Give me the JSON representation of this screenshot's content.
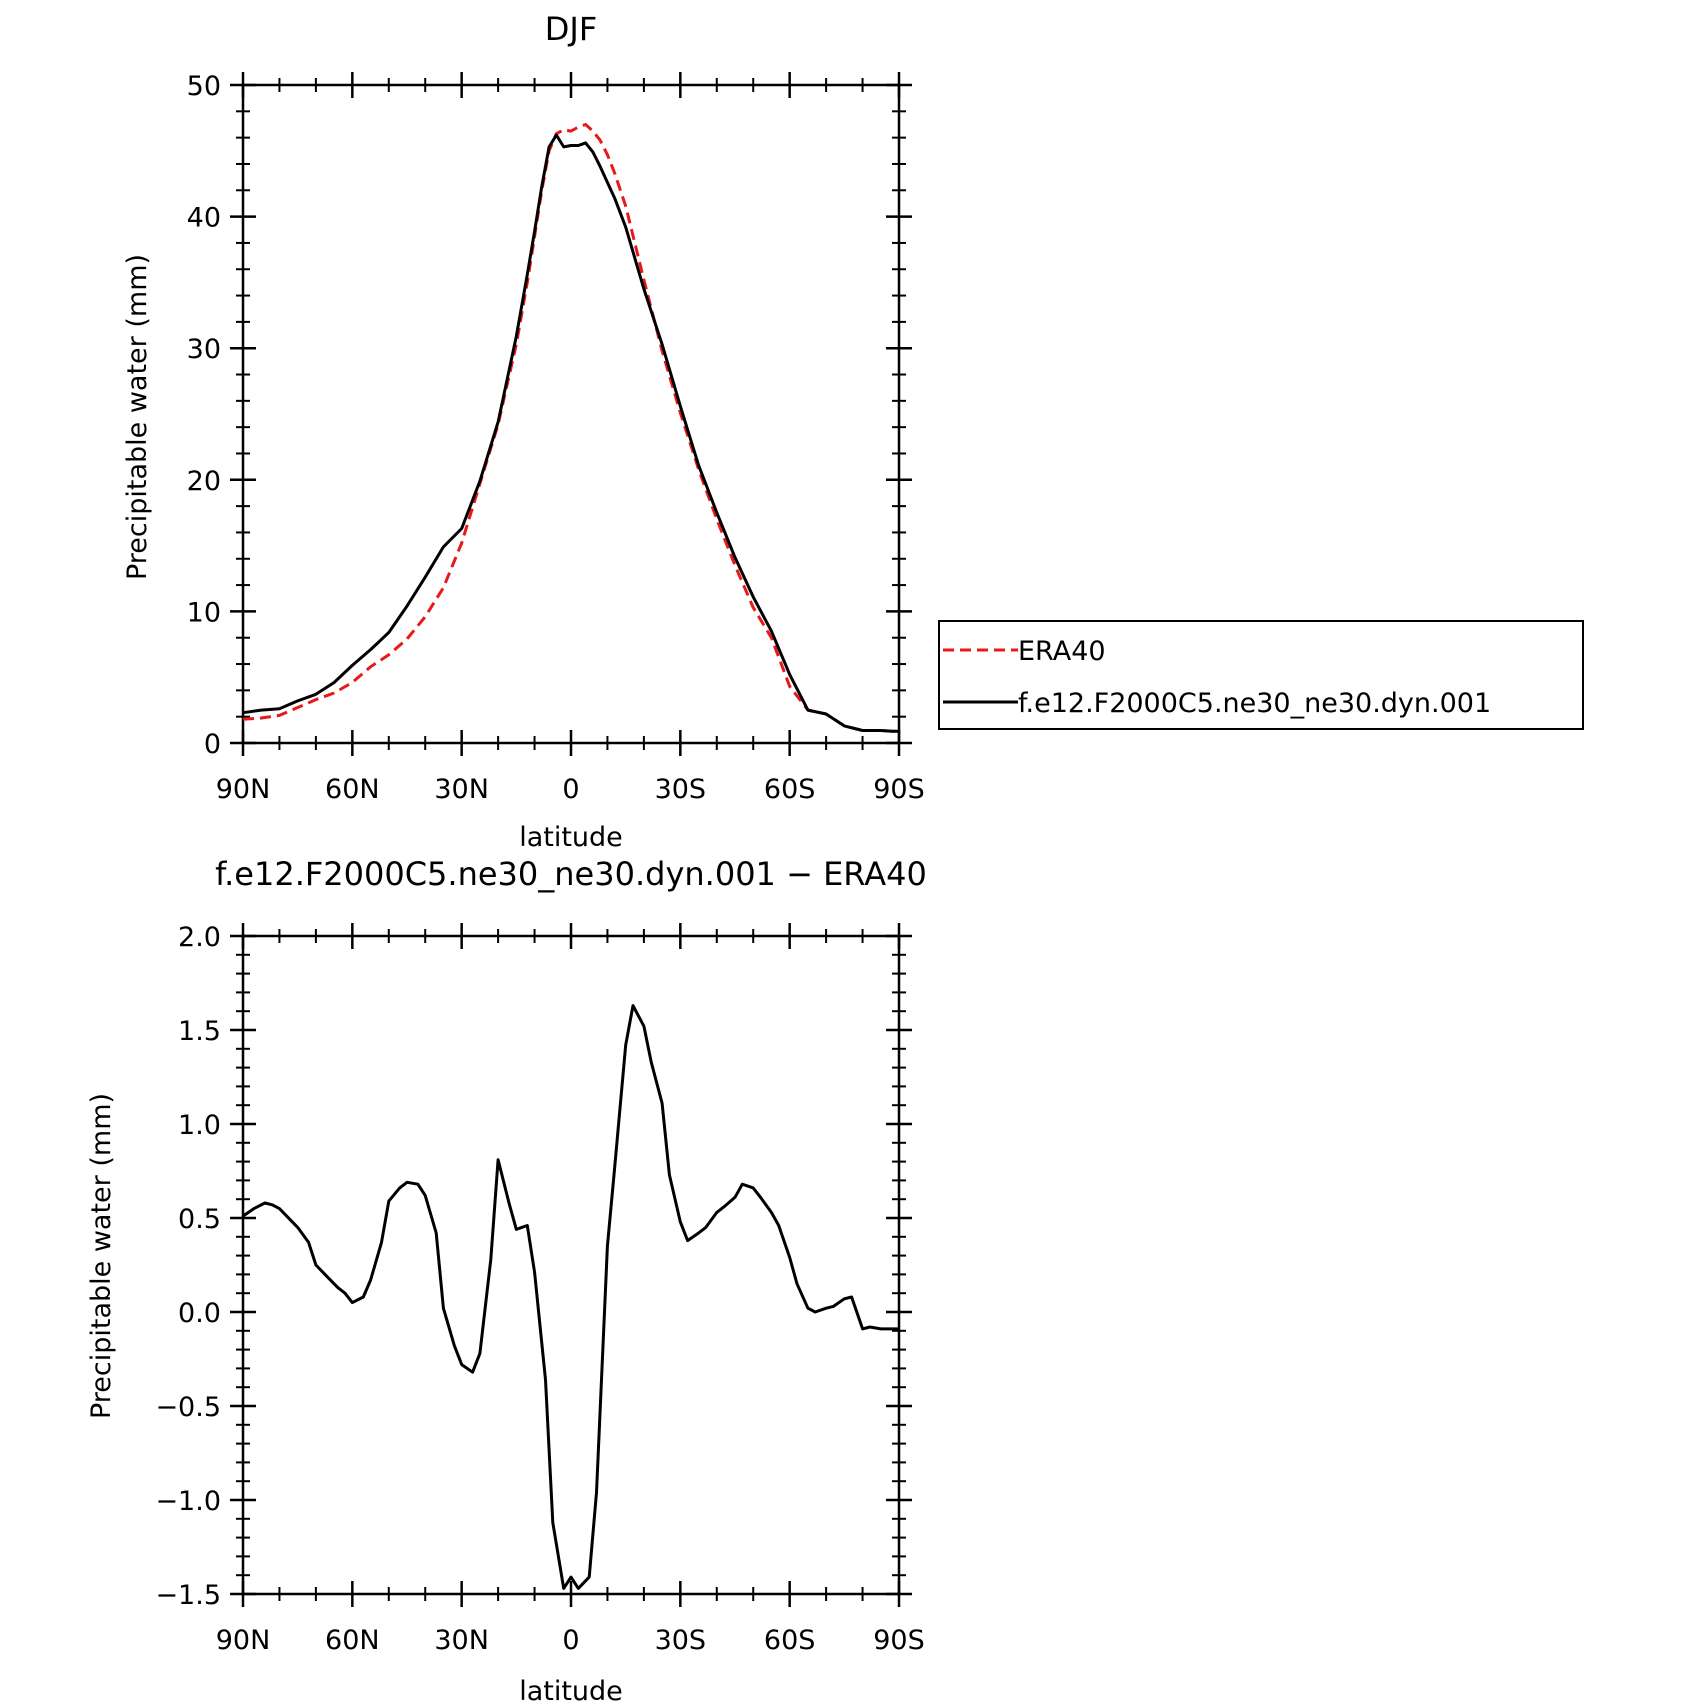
{
  "chart_data": [
    {
      "type": "line",
      "title": "DJF",
      "xlabel": "latitude",
      "ylabel": "Precipitable water (mm)",
      "x_tick_values": [
        90,
        60,
        30,
        0,
        -30,
        -60,
        -90
      ],
      "x_tick_labels": [
        "90N",
        "60N",
        "30N",
        "0",
        "30S",
        "60S",
        "90S"
      ],
      "xlim": [
        90,
        -90
      ],
      "ylim": [
        0,
        50
      ],
      "y_tick_values": [
        0,
        10,
        20,
        30,
        40,
        50
      ],
      "y_tick_labels": [
        "0",
        "10",
        "20",
        "30",
        "40",
        "50"
      ],
      "legend_position": "right",
      "series": [
        {
          "name": "ERA40",
          "color": "#e8191b",
          "dash": "dashed",
          "x": [
            90,
            85,
            80,
            75,
            70,
            65,
            60,
            55,
            50,
            45,
            40,
            35,
            30,
            25,
            20,
            15,
            12,
            10,
            8,
            6,
            4,
            2,
            0,
            -2,
            -4,
            -6,
            -8,
            -10,
            -12,
            -15,
            -20,
            -25,
            -30,
            -35,
            -40,
            -45,
            -50,
            -55,
            -60,
            -65,
            -70,
            -75,
            -80,
            -85,
            -88,
            -90
          ],
          "y": [
            1.8,
            1.9,
            2.1,
            2.7,
            3.3,
            3.8,
            4.6,
            5.8,
            6.7,
            7.9,
            9.6,
            11.8,
            15.2,
            19.7,
            24.2,
            30.3,
            35.0,
            38.5,
            42.0,
            45.0,
            46.3,
            46.6,
            46.5,
            46.8,
            47.0,
            46.5,
            45.8,
            44.7,
            43.3,
            40.8,
            35.2,
            29.8,
            25.1,
            20.8,
            17.0,
            13.5,
            10.3,
            8.0,
            4.3,
            2.5,
            2.2,
            1.3,
            0.95,
            0.95,
            0.9,
            0.9
          ],
          "y_note": ""
        },
        {
          "name": "f.e12.F2000C5.ne30_ne30.dyn.001",
          "color": "#000000",
          "dash": "solid",
          "x": [
            90,
            85,
            80,
            75,
            70,
            65,
            60,
            55,
            50,
            45,
            40,
            35,
            30,
            25,
            20,
            15,
            12,
            10,
            8,
            6,
            4,
            2,
            0,
            -2,
            -4,
            -6,
            -8,
            -10,
            -12,
            -15,
            -20,
            -25,
            -30,
            -35,
            -40,
            -45,
            -50,
            -55,
            -60,
            -65,
            -70,
            -75,
            -80,
            -85,
            -88,
            -90
          ],
          "y": [
            2.3,
            2.5,
            2.6,
            3.2,
            3.7,
            4.6,
            5.9,
            7.1,
            8.4,
            10.4,
            12.6,
            14.9,
            16.3,
            19.9,
            24.4,
            30.9,
            35.6,
            38.9,
            42.3,
            45.3,
            46.2,
            45.3,
            45.4,
            45.4,
            45.6,
            44.9,
            43.8,
            42.6,
            41.4,
            39.2,
            34.5,
            30.3,
            25.6,
            21.1,
            17.5,
            14.1,
            11.1,
            8.5,
            5.2,
            2.5,
            2.2,
            1.3,
            0.95,
            0.95,
            0.9,
            0.9
          ]
        }
      ]
    },
    {
      "type": "line",
      "title": "f.e12.F2000C5.ne30_ne30.dyn.001 − ERA40",
      "xlabel": "latitude",
      "ylabel": "Precipitable water (mm)",
      "x_tick_values": [
        90,
        60,
        30,
        0,
        -30,
        -60,
        -90
      ],
      "x_tick_labels": [
        "90N",
        "60N",
        "30N",
        "0",
        "30S",
        "60S",
        "90S"
      ],
      "xlim": [
        90,
        -90
      ],
      "ylim": [
        -1.5,
        2.0
      ],
      "y_tick_values": [
        -1.5,
        -1.0,
        -0.5,
        0.0,
        0.5,
        1.0,
        1.5,
        2.0
      ],
      "y_tick_labels": [
        "−1.5",
        "−1.0",
        "−0.5",
        "0.0",
        "0.5",
        "1.0",
        "1.5",
        "2.0"
      ],
      "series": [
        {
          "color": "#000000",
          "dash": "solid",
          "x": [
            90,
            87,
            84,
            82,
            80,
            77,
            75,
            72,
            70,
            67,
            64,
            62,
            60,
            57,
            55,
            52,
            50,
            47,
            45,
            42,
            40,
            37,
            35,
            32,
            30,
            27,
            25,
            22,
            20,
            17,
            15,
            12,
            10,
            7,
            5,
            2,
            0,
            -2,
            -5,
            -7,
            -10,
            -12,
            -15,
            -17,
            -20,
            -22,
            -25,
            -27,
            -30,
            -32,
            -35,
            -37,
            -40,
            -42,
            -45,
            -47,
            -50,
            -52,
            -55,
            -57,
            -60,
            -62,
            -65,
            -67,
            -70,
            -72,
            -75,
            -77,
            -80,
            -82,
            -85,
            -87,
            -90
          ],
          "y": [
            0.51,
            0.55,
            0.58,
            0.57,
            0.55,
            0.49,
            0.45,
            0.37,
            0.25,
            0.19,
            0.13,
            0.1,
            0.05,
            0.08,
            0.17,
            0.37,
            0.59,
            0.66,
            0.69,
            0.68,
            0.62,
            0.42,
            0.02,
            -0.18,
            -0.28,
            -0.32,
            -0.22,
            0.28,
            0.81,
            0.58,
            0.44,
            0.46,
            0.21,
            -0.36,
            -1.12,
            -1.47,
            -1.41,
            -1.47,
            -1.41,
            -0.96,
            0.35,
            0.77,
            1.42,
            1.63,
            1.52,
            1.33,
            1.11,
            0.73,
            0.48,
            0.38,
            0.42,
            0.45,
            0.53,
            0.56,
            0.61,
            0.68,
            0.66,
            0.61,
            0.53,
            0.46,
            0.29,
            0.15,
            0.02,
            0.0,
            0.02,
            0.03,
            0.07,
            0.08,
            -0.09,
            -0.08,
            -0.09,
            -0.09,
            -0.09
          ]
        }
      ]
    }
  ]
}
